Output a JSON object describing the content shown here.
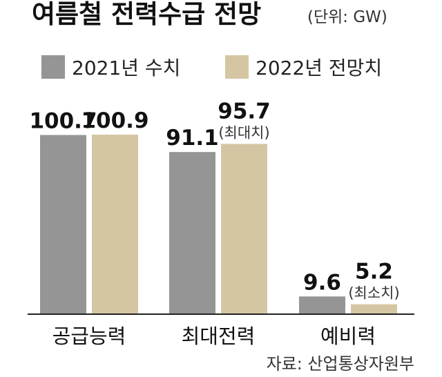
{
  "colors": {
    "s2021": "#959595",
    "s2022": "#d5c6a3",
    "axis": "#222222"
  },
  "chart_data": {
    "type": "bar",
    "title": "여름철 전력수급 전망",
    "unit": "(단위: GW)",
    "categories": [
      "공급능력",
      "최대전력",
      "예비력"
    ],
    "series": [
      {
        "name": "2021년 수치",
        "values": [
          100.7,
          91.1,
          9.6
        ],
        "labels": [
          "100.7",
          "91.1",
          "9.6"
        ]
      },
      {
        "name": "2022년 전망치",
        "values": [
          100.9,
          95.7,
          5.2
        ],
        "labels": [
          "100.9",
          "95.7",
          "5.2"
        ]
      }
    ],
    "notes": [
      {
        "category": 1,
        "series": 1,
        "text": "(최대치)"
      },
      {
        "category": 2,
        "series": 1,
        "text": "(최소치)"
      }
    ],
    "ylim": [
      0,
      100.9
    ],
    "source": "자료: 산업통상자원부"
  }
}
